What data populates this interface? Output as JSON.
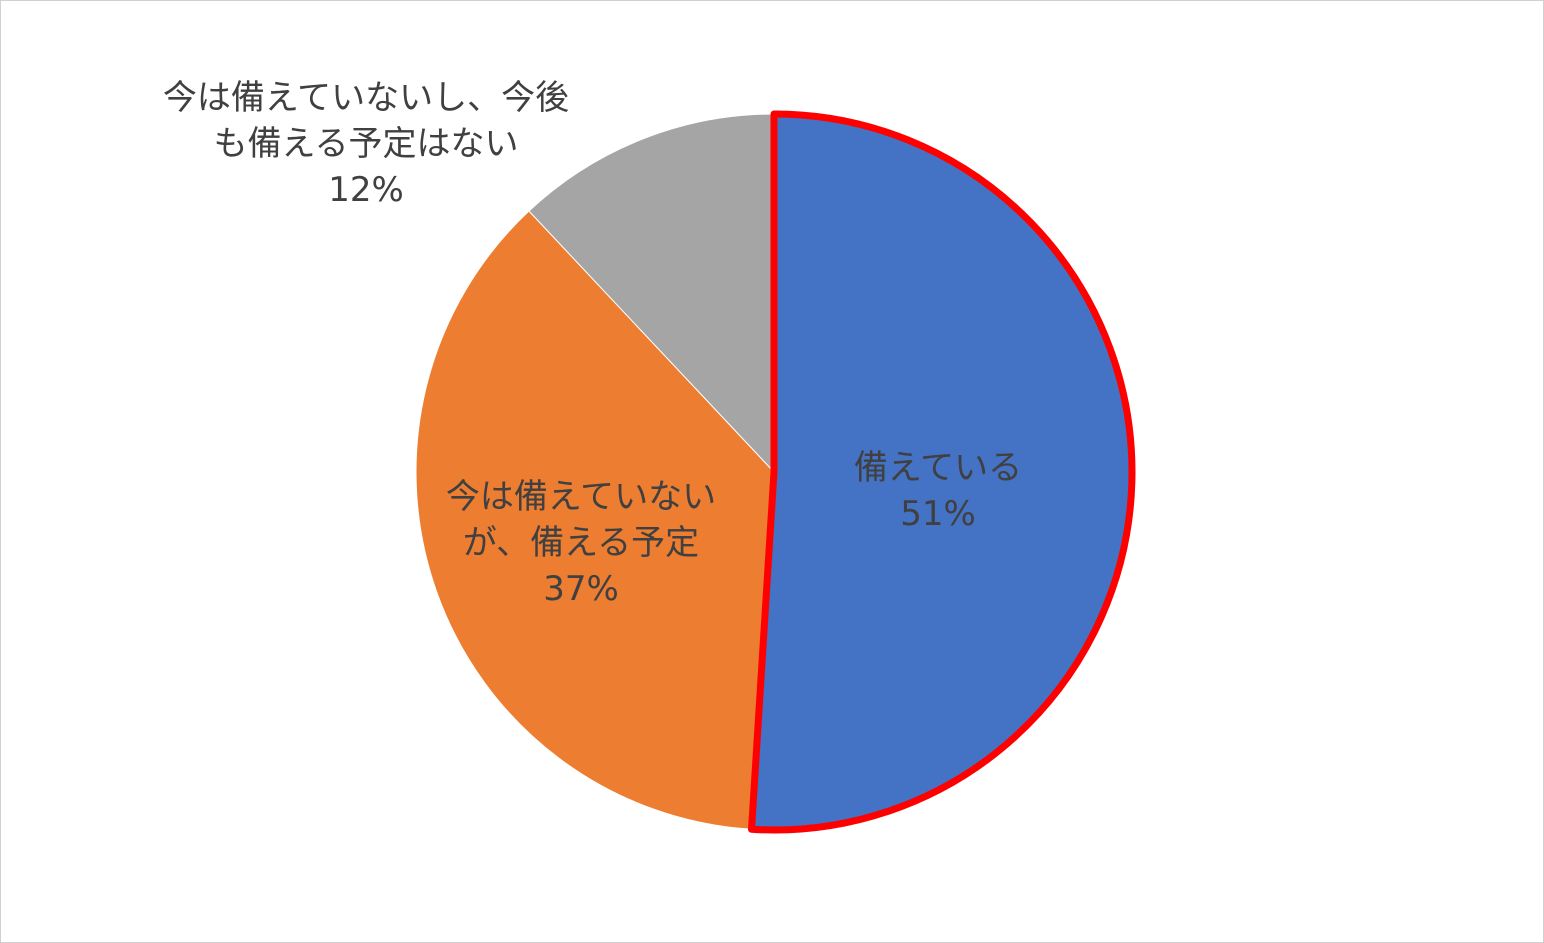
{
  "chart_data": {
    "type": "pie",
    "categories": [
      "備えている",
      "今は備えていないが、備える予定",
      "今は備えていないし、今後も備える予定はない"
    ],
    "values": [
      51,
      37,
      12
    ],
    "value_labels": [
      "51%",
      "37%",
      "12%"
    ],
    "colors": [
      "#4472c4",
      "#ed7d31",
      "#a5a5a5"
    ],
    "edge_colors": [
      "#ff0000",
      null,
      null
    ]
  }
}
